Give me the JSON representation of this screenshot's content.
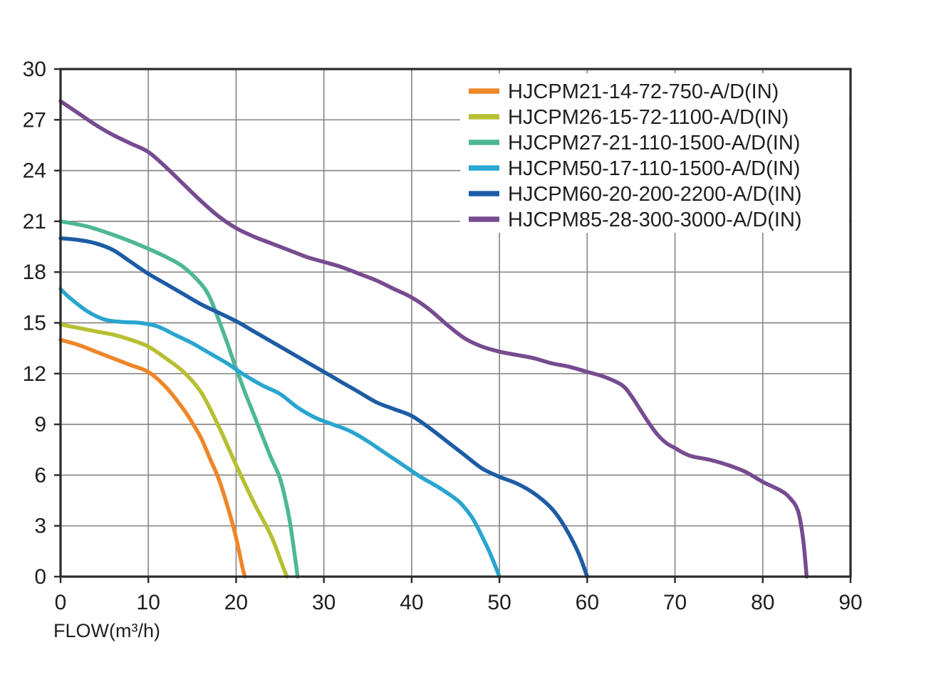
{
  "styles": {
    "background": "#ffffff",
    "grid_color": "#8a8a8a",
    "border_color": "#2a2a2a",
    "text_color": "#1f1f1f",
    "curve_width": 5.5
  },
  "chart_data": {
    "type": "line",
    "title": "",
    "xlabel": "FLOW(m³/h)",
    "ylabel": "",
    "xlim": [
      0,
      90
    ],
    "ylim": [
      0,
      30
    ],
    "x_ticks": [
      0,
      10,
      20,
      30,
      40,
      50,
      60,
      70,
      80,
      90
    ],
    "y_ticks": [
      0,
      3,
      6,
      9,
      12,
      15,
      18,
      21,
      24,
      27,
      30
    ],
    "grid": true,
    "legend_position": "top-right",
    "series": [
      {
        "name": "HJCPM21-14-72-750-A/D(IN)",
        "color": "#ef8629",
        "points": [
          [
            0,
            14
          ],
          [
            2,
            13.7
          ],
          [
            4,
            13.3
          ],
          [
            6,
            12.9
          ],
          [
            8,
            12.5
          ],
          [
            10,
            12.1
          ],
          [
            12,
            11.2
          ],
          [
            14,
            9.9
          ],
          [
            15,
            9.1
          ],
          [
            16,
            8.2
          ],
          [
            17,
            7.0
          ],
          [
            18,
            5.8
          ],
          [
            19,
            4.2
          ],
          [
            20,
            2.3
          ],
          [
            20.7,
            0.6
          ],
          [
            21,
            0
          ]
        ]
      },
      {
        "name": "HJCPM26-15-72-1100-A/D(IN)",
        "color": "#b7bf33",
        "points": [
          [
            0,
            14.9
          ],
          [
            2,
            14.7
          ],
          [
            4,
            14.5
          ],
          [
            6,
            14.3
          ],
          [
            8,
            14.0
          ],
          [
            10,
            13.6
          ],
          [
            12,
            12.9
          ],
          [
            14,
            12.1
          ],
          [
            16,
            10.9
          ],
          [
            18,
            8.9
          ],
          [
            20,
            6.6
          ],
          [
            22,
            4.4
          ],
          [
            24,
            2.4
          ],
          [
            25.4,
            0.5
          ],
          [
            25.8,
            0
          ]
        ]
      },
      {
        "name": "HJCPM27-21-110-1500-A/D(IN)",
        "color": "#4eb795",
        "points": [
          [
            0,
            21
          ],
          [
            3,
            20.7
          ],
          [
            6,
            20.2
          ],
          [
            9,
            19.6
          ],
          [
            12,
            18.9
          ],
          [
            14,
            18.3
          ],
          [
            16,
            17.3
          ],
          [
            17,
            16.5
          ],
          [
            18,
            15.2
          ],
          [
            19,
            13.8
          ],
          [
            20,
            12.3
          ],
          [
            21,
            10.9
          ],
          [
            22,
            9.6
          ],
          [
            23,
            8.3
          ],
          [
            24,
            7.0
          ],
          [
            25,
            5.8
          ],
          [
            26,
            3.6
          ],
          [
            26.7,
            1.2
          ],
          [
            27,
            0
          ]
        ]
      },
      {
        "name": "HJCPM50-17-110-1500-A/D(IN)",
        "color": "#29a5cf",
        "points": [
          [
            0,
            17
          ],
          [
            1,
            16.5
          ],
          [
            3,
            15.7
          ],
          [
            5,
            15.2
          ],
          [
            7,
            15.05
          ],
          [
            9,
            15.0
          ],
          [
            11,
            14.8
          ],
          [
            13,
            14.3
          ],
          [
            15,
            13.8
          ],
          [
            17,
            13.2
          ],
          [
            19,
            12.6
          ],
          [
            21,
            11.9
          ],
          [
            23,
            11.3
          ],
          [
            25,
            10.8
          ],
          [
            27,
            10.0
          ],
          [
            29,
            9.4
          ],
          [
            31,
            9.0
          ],
          [
            33,
            8.6
          ],
          [
            35,
            8.0
          ],
          [
            37,
            7.3
          ],
          [
            39,
            6.6
          ],
          [
            41,
            5.9
          ],
          [
            43,
            5.3
          ],
          [
            45,
            4.6
          ],
          [
            46,
            4.1
          ],
          [
            47,
            3.4
          ],
          [
            48,
            2.4
          ],
          [
            49,
            1.3
          ],
          [
            50,
            0
          ]
        ]
      },
      {
        "name": "HJCPM60-20-200-2200-A/D(IN)",
        "color": "#1d5ca5",
        "points": [
          [
            0,
            20
          ],
          [
            2,
            19.9
          ],
          [
            4,
            19.7
          ],
          [
            6,
            19.3
          ],
          [
            8,
            18.6
          ],
          [
            10,
            17.9
          ],
          [
            12,
            17.3
          ],
          [
            14,
            16.7
          ],
          [
            16,
            16.1
          ],
          [
            18,
            15.6
          ],
          [
            20,
            15.1
          ],
          [
            22,
            14.5
          ],
          [
            24,
            13.9
          ],
          [
            26,
            13.3
          ],
          [
            28,
            12.7
          ],
          [
            30,
            12.1
          ],
          [
            32,
            11.5
          ],
          [
            34,
            10.9
          ],
          [
            36,
            10.3
          ],
          [
            38,
            9.9
          ],
          [
            40,
            9.5
          ],
          [
            42,
            8.8
          ],
          [
            44,
            8.0
          ],
          [
            46,
            7.2
          ],
          [
            48,
            6.4
          ],
          [
            50,
            5.9
          ],
          [
            52,
            5.5
          ],
          [
            54,
            4.9
          ],
          [
            56,
            4.0
          ],
          [
            57.5,
            2.9
          ],
          [
            59,
            1.4
          ],
          [
            60,
            0
          ]
        ]
      },
      {
        "name": "HJCPM85-28-300-3000-A/D(IN)",
        "color": "#774b8f",
        "points": [
          [
            0,
            28.1
          ],
          [
            2,
            27.4
          ],
          [
            4,
            26.7
          ],
          [
            6,
            26.1
          ],
          [
            8,
            25.6
          ],
          [
            10,
            25.1
          ],
          [
            12,
            24.2
          ],
          [
            14,
            23.2
          ],
          [
            16,
            22.2
          ],
          [
            18,
            21.3
          ],
          [
            20,
            20.6
          ],
          [
            22,
            20.1
          ],
          [
            24,
            19.7
          ],
          [
            26,
            19.3
          ],
          [
            28,
            18.9
          ],
          [
            30,
            18.6
          ],
          [
            32,
            18.3
          ],
          [
            34,
            17.9
          ],
          [
            36,
            17.5
          ],
          [
            38,
            17.0
          ],
          [
            40,
            16.5
          ],
          [
            42,
            15.8
          ],
          [
            44,
            14.9
          ],
          [
            46,
            14.1
          ],
          [
            48,
            13.6
          ],
          [
            50,
            13.3
          ],
          [
            52,
            13.1
          ],
          [
            54,
            12.9
          ],
          [
            56,
            12.6
          ],
          [
            58,
            12.4
          ],
          [
            60,
            12.1
          ],
          [
            62,
            11.8
          ],
          [
            64,
            11.3
          ],
          [
            65,
            10.7
          ],
          [
            66,
            9.9
          ],
          [
            67,
            9.1
          ],
          [
            68,
            8.4
          ],
          [
            69,
            7.9
          ],
          [
            70,
            7.6
          ],
          [
            71,
            7.3
          ],
          [
            72,
            7.1
          ],
          [
            74,
            6.9
          ],
          [
            76,
            6.6
          ],
          [
            78,
            6.2
          ],
          [
            80,
            5.6
          ],
          [
            82,
            5.1
          ],
          [
            83,
            4.7
          ],
          [
            84,
            3.9
          ],
          [
            84.6,
            2.2
          ],
          [
            85,
            0
          ]
        ]
      }
    ]
  }
}
